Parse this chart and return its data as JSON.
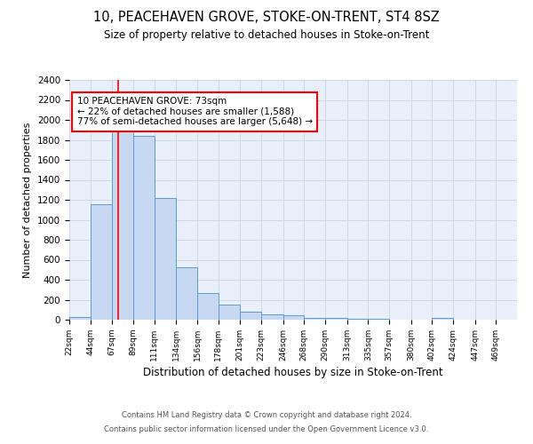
{
  "title": "10, PEACEHAVEN GROVE, STOKE-ON-TRENT, ST4 8SZ",
  "subtitle": "Size of property relative to detached houses in Stoke-on-Trent",
  "xlabel": "Distribution of detached houses by size in Stoke-on-Trent",
  "ylabel": "Number of detached properties",
  "bin_labels": [
    "22sqm",
    "44sqm",
    "67sqm",
    "89sqm",
    "111sqm",
    "134sqm",
    "156sqm",
    "178sqm",
    "201sqm",
    "223sqm",
    "246sqm",
    "268sqm",
    "290sqm",
    "313sqm",
    "335sqm",
    "357sqm",
    "380sqm",
    "402sqm",
    "424sqm",
    "447sqm",
    "469sqm"
  ],
  "bin_edges": [
    22,
    44,
    67,
    89,
    111,
    134,
    156,
    178,
    201,
    223,
    246,
    268,
    290,
    313,
    335,
    357,
    380,
    402,
    424,
    447,
    469,
    491
  ],
  "bar_heights": [
    25,
    1155,
    1950,
    1840,
    1215,
    525,
    265,
    155,
    80,
    52,
    42,
    20,
    15,
    10,
    5,
    3,
    3,
    20,
    2,
    2,
    2
  ],
  "bar_facecolor": "#c6d9f0",
  "bar_edgecolor": "#5b9bd5",
  "red_line_x": 73,
  "annotation_text": "10 PEACEHAVEN GROVE: 73sqm\n← 22% of detached houses are smaller (1,588)\n77% of semi-detached houses are larger (5,648) →",
  "annotation_box_color": "white",
  "annotation_box_edgecolor": "red",
  "grid_color": "#d0d8e8",
  "background_color": "#eaf0fb",
  "ylim": [
    0,
    2400
  ],
  "yticks": [
    0,
    200,
    400,
    600,
    800,
    1000,
    1200,
    1400,
    1600,
    1800,
    2000,
    2200,
    2400
  ],
  "footer_line1": "Contains HM Land Registry data © Crown copyright and database right 2024.",
  "footer_line2": "Contains public sector information licensed under the Open Government Licence v3.0."
}
